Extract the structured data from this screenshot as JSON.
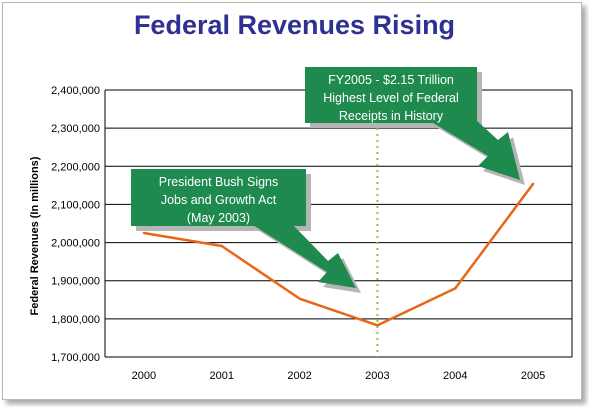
{
  "chart_data": {
    "type": "line",
    "title": "Federal Revenues Rising",
    "ylabel": "Federal Revenues (In millions)",
    "xlabel": "",
    "categories": [
      "2000",
      "2001",
      "2002",
      "2003",
      "2004",
      "2005"
    ],
    "series": [
      {
        "values": [
          2025000,
          1991000,
          1853000,
          1783000,
          1880000,
          2154000
        ]
      }
    ],
    "ylim": [
      1700000,
      2400000
    ],
    "yticks": [
      "1,700,000",
      "1,800,000",
      "1,900,000",
      "2,000,000",
      "2,100,000",
      "2,200,000",
      "2,300,000",
      "2,400,000"
    ],
    "grid": "horizontal",
    "marker_line_at": "2003",
    "annotations": [
      {
        "lines": [
          "President Bush Signs",
          "Jobs and Growth Act",
          "(May 2003)"
        ]
      },
      {
        "lines": [
          "FY2005 - $2.15 Trillion",
          "Highest Level of Federal",
          "Receipts in History"
        ]
      }
    ],
    "colors": {
      "line": "#e8661a",
      "title": "#2e3192",
      "callout": "#1e8a4e",
      "callout_shadow": "#b5b5b5",
      "marker_line": "#8cc63f",
      "grid": "#000000"
    }
  }
}
